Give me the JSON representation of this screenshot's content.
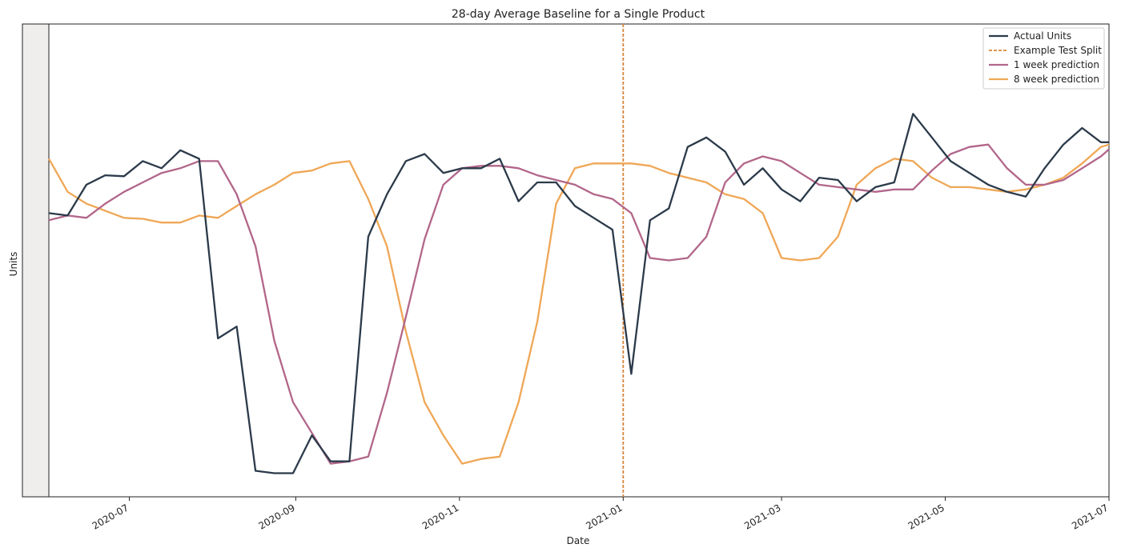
{
  "chart_data": {
    "type": "line",
    "title": "28-day Average Baseline for a Single Product",
    "xlabel": "Date",
    "ylabel": "Units",
    "x_tick_labels": [
      "2020-07",
      "2020-09",
      "2020-11",
      "2021-01",
      "2021-03",
      "2021-05",
      "2021-07"
    ],
    "x_tick_dates": [
      "2020-07-01",
      "2020-09-01",
      "2020-11-01",
      "2021-01-01",
      "2021-03-01",
      "2021-05-01",
      "2021-07-01"
    ],
    "xlim": [
      "2020-06-01",
      "2021-07-01"
    ],
    "ylim": [
      0,
      100
    ],
    "y_ticks_shown": false,
    "grid": false,
    "legend_position": "top-right",
    "vertical_line": {
      "name": "Example Test Split",
      "x": "2021-01-01",
      "color": "#d9863a",
      "style": "dashed"
    },
    "x": [
      "2020-06-01",
      "2020-06-08",
      "2020-06-15",
      "2020-06-22",
      "2020-06-29",
      "2020-07-06",
      "2020-07-13",
      "2020-07-20",
      "2020-07-27",
      "2020-08-03",
      "2020-08-10",
      "2020-08-17",
      "2020-08-24",
      "2020-08-31",
      "2020-09-07",
      "2020-09-14",
      "2020-09-21",
      "2020-09-28",
      "2020-10-05",
      "2020-10-12",
      "2020-10-19",
      "2020-10-26",
      "2020-11-02",
      "2020-11-09",
      "2020-11-16",
      "2020-11-23",
      "2020-11-30",
      "2020-12-07",
      "2020-12-14",
      "2020-12-21",
      "2020-12-28",
      "2021-01-04",
      "2021-01-11",
      "2021-01-18",
      "2021-01-25",
      "2021-02-01",
      "2021-02-08",
      "2021-02-15",
      "2021-02-22",
      "2021-03-01",
      "2021-03-08",
      "2021-03-15",
      "2021-03-22",
      "2021-03-29",
      "2021-04-05",
      "2021-04-12",
      "2021-04-19",
      "2021-04-26",
      "2021-05-03",
      "2021-05-10",
      "2021-05-17",
      "2021-05-24",
      "2021-05-31",
      "2021-06-07",
      "2021-06-14",
      "2021-06-21",
      "2021-06-28",
      "2021-07-01"
    ],
    "series": [
      {
        "name": "Actual Units",
        "color": "#2b3a4a",
        "values": [
          60,
          59.5,
          66,
          68,
          67.8,
          71,
          69.5,
          73.3,
          71.5,
          33.5,
          36,
          5.5,
          5,
          5,
          13,
          7.5,
          7.5,
          55,
          64,
          71,
          72.5,
          68.5,
          69.5,
          69.5,
          71.5,
          62.5,
          66.5,
          66.5,
          61.5,
          59,
          56.5,
          26,
          58.5,
          61,
          74,
          76,
          73,
          66,
          69.5,
          65,
          62.5,
          67.5,
          67,
          62.5,
          65.5,
          66.5,
          81,
          76,
          71,
          68.5,
          66,
          64.5,
          63.5,
          69.5,
          74.5,
          78,
          75,
          75
        ]
      },
      {
        "name": "1 week prediction",
        "color": "#b2668a",
        "values": [
          58.5,
          59.5,
          59,
          62,
          64.5,
          66.5,
          68.5,
          69.5,
          71,
          71,
          64,
          53,
          33,
          20,
          13.5,
          7,
          7.5,
          8.5,
          22,
          38,
          54.5,
          66,
          69.5,
          70,
          70,
          69.5,
          68,
          67,
          66,
          64,
          63,
          60,
          50.5,
          50,
          50.5,
          55,
          66.5,
          70.5,
          72,
          71,
          68.5,
          66,
          65.5,
          65,
          64.5,
          65,
          65,
          69,
          72.5,
          74,
          74.5,
          69.5,
          66,
          66,
          67,
          69.5,
          72,
          73.5
        ]
      },
      {
        "name": "8 week prediction",
        "color": "#efa756",
        "values": [
          71.5,
          64.5,
          62,
          60.5,
          59,
          58.8,
          58,
          58,
          59.5,
          59,
          61.5,
          64,
          66,
          68.5,
          69,
          70.5,
          71,
          63,
          53,
          35,
          20,
          13,
          7,
          8,
          8.5,
          20,
          37,
          62,
          69.5,
          70.5,
          70.5,
          70.5,
          70,
          68.5,
          67.5,
          66.5,
          64,
          63,
          60,
          50.5,
          50,
          50.5,
          55,
          66,
          69.5,
          71.5,
          71,
          67.5,
          65.5,
          65.5,
          65,
          64.5,
          65,
          66,
          67.5,
          70.5,
          74,
          74.5
        ]
      }
    ],
    "legend": [
      "Actual Units",
      "Example Test Split",
      "1 week prediction",
      "8 week prediction"
    ]
  }
}
